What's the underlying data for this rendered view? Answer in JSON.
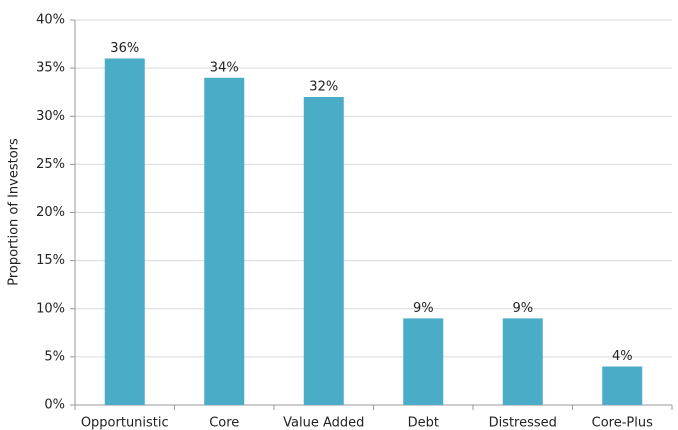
{
  "chart_data": {
    "type": "bar",
    "y_label": "Proportion of Investors",
    "categories": [
      "Opportunistic",
      "Core",
      "Value Added",
      "Debt",
      "Distressed",
      "Core-Plus"
    ],
    "values": [
      36,
      34,
      32,
      9,
      9,
      4
    ],
    "value_labels": [
      "36%",
      "34%",
      "32%",
      "9%",
      "9%",
      "4%"
    ],
    "color": "#4aacc6",
    "ylim": [
      0,
      40
    ],
    "yticks": [
      {
        "value": 0,
        "label": "0%"
      },
      {
        "value": 5,
        "label": "5%"
      },
      {
        "value": 10,
        "label": "10%"
      },
      {
        "value": 15,
        "label": "15%"
      },
      {
        "value": 20,
        "label": "20%"
      },
      {
        "value": 25,
        "label": "25%"
      },
      {
        "value": 30,
        "label": "30%"
      },
      {
        "value": 35,
        "label": "35%"
      },
      {
        "value": 40,
        "label": "40%"
      }
    ],
    "grid": true
  }
}
